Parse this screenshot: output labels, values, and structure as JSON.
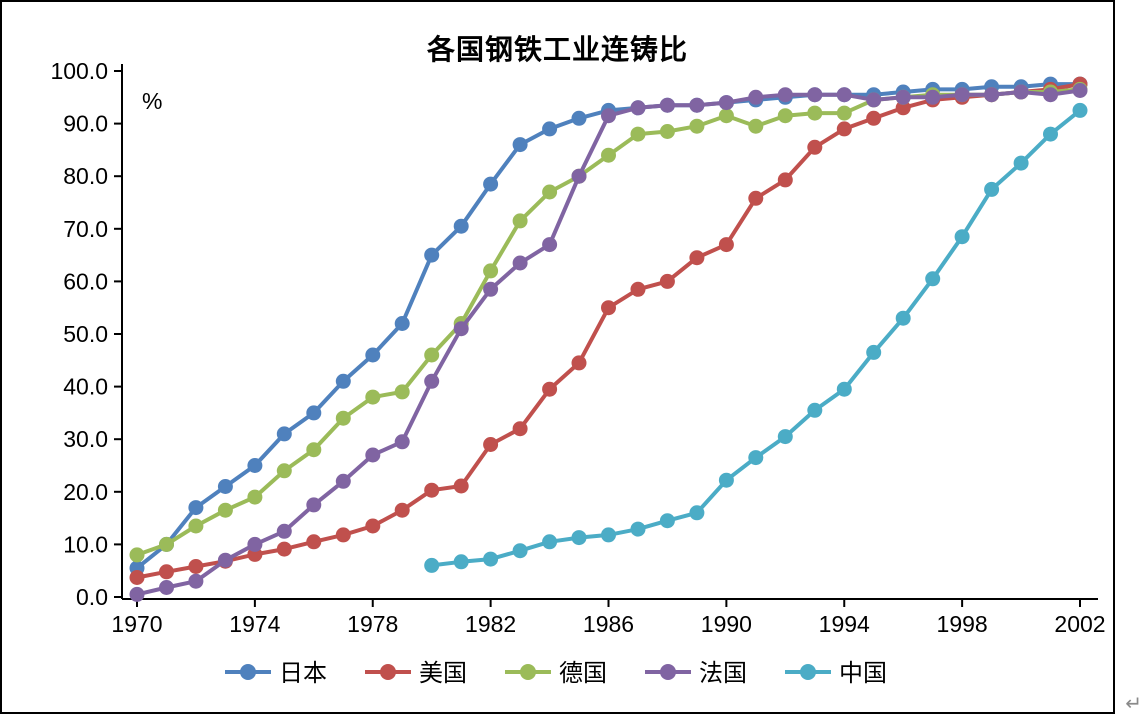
{
  "page": {
    "return_glyph": "↵"
  },
  "chart_data": {
    "type": "line",
    "title": "各国钢铁工业连铸比",
    "ylabel": "%",
    "xlabel": "",
    "ylim": [
      0,
      100
    ],
    "grid": false,
    "legend_position": "bottom",
    "x": [
      1970,
      1971,
      1972,
      1973,
      1974,
      1975,
      1976,
      1977,
      1978,
      1979,
      1980,
      1981,
      1982,
      1983,
      1984,
      1985,
      1986,
      1987,
      1988,
      1989,
      1990,
      1991,
      1992,
      1993,
      1994,
      1995,
      1996,
      1997,
      1998,
      1999,
      2000,
      2001,
      2002
    ],
    "xticks": [
      "1970",
      "1974",
      "1978",
      "1982",
      "1986",
      "1990",
      "1994",
      "1998",
      "2002"
    ],
    "yticks": [
      "0.0",
      "10.0",
      "20.0",
      "30.0",
      "40.0",
      "50.0",
      "60.0",
      "70.0",
      "80.0",
      "90.0",
      "100.0"
    ],
    "series": [
      {
        "name": "日本",
        "color": "#4F81BD",
        "values": [
          5.5,
          10,
          17,
          21,
          25,
          31,
          35,
          41,
          46,
          52,
          65,
          70.5,
          78.5,
          86,
          89,
          91,
          92.5,
          93,
          93.5,
          93.5,
          94,
          94.5,
          95,
          95.5,
          95.5,
          95.5,
          96,
          96.5,
          96.5,
          97,
          97,
          97.5,
          97.5
        ]
      },
      {
        "name": "美国",
        "color": "#C0504D",
        "values": [
          3.7,
          4.8,
          5.8,
          6.8,
          8.1,
          9.1,
          10.5,
          11.8,
          13.5,
          16.5,
          20.3,
          21.1,
          29,
          32,
          39.5,
          44.5,
          55,
          58.5,
          60,
          64.5,
          67,
          75.8,
          79.3,
          85.5,
          89,
          91,
          93,
          94.5,
          95,
          95.5,
          96,
          96.5,
          97.5
        ]
      },
      {
        "name": "德国",
        "color": "#9BBB59",
        "values": [
          8,
          10,
          13.5,
          16.5,
          19,
          24,
          28,
          34,
          38,
          39,
          46,
          52,
          62,
          71.5,
          77,
          80,
          84,
          88,
          88.5,
          89.5,
          91.5,
          89.5,
          91.5,
          92,
          92,
          94.5,
          95,
          95.5,
          95.5,
          95.5,
          96,
          96,
          96.5
        ]
      },
      {
        "name": "法国",
        "color": "#8064A2",
        "values": [
          0.5,
          1.8,
          3,
          7,
          10,
          12.5,
          17.5,
          22,
          27,
          29.5,
          41,
          51,
          58.5,
          63.5,
          67,
          80,
          91.5,
          93,
          93.5,
          93.5,
          94,
          95,
          95.5,
          95.5,
          95.5,
          94.5,
          95,
          95,
          95.5,
          95.5,
          96,
          95.5,
          96.3
        ]
      },
      {
        "name": "中国",
        "color": "#4BACC6",
        "values": [
          null,
          null,
          null,
          null,
          null,
          null,
          null,
          null,
          null,
          null,
          6,
          6.7,
          7.2,
          8.8,
          10.5,
          11.3,
          11.8,
          12.9,
          14.5,
          16,
          22.2,
          26.5,
          30.5,
          35.5,
          39.5,
          46.5,
          53,
          60.5,
          68.5,
          77.5,
          82.5,
          88,
          92.5
        ]
      }
    ]
  }
}
